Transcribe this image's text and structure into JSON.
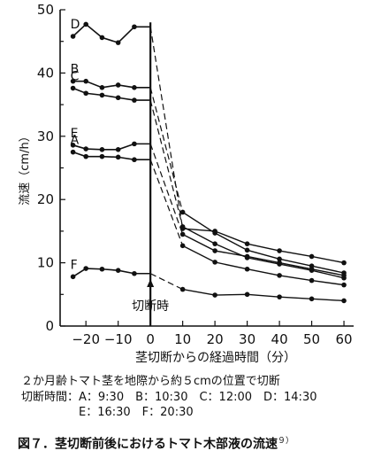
{
  "chart_data": {
    "type": "line",
    "ylabel": "流速（cm/h）",
    "xlabel": "茎切断からの経過時間（分）",
    "xlim": [
      -28,
      63
    ],
    "ylim": [
      0,
      50
    ],
    "xticks": [
      -20,
      -10,
      0,
      10,
      20,
      30,
      40,
      50,
      60
    ],
    "xtick_labels": [
      "−20",
      "−10",
      "0",
      "10",
      "20",
      "30",
      "40",
      "50",
      "60"
    ],
    "yticks": [
      0,
      10,
      20,
      30,
      40,
      50
    ],
    "cut_line_x": 0,
    "cut_annotation": "切断時",
    "series": [
      {
        "name": "D",
        "before": [
          [
            -24,
            45.8
          ],
          [
            -20,
            47.7
          ],
          [
            -15,
            45.6
          ],
          [
            -10,
            44.8
          ],
          [
            -5,
            47.3
          ],
          [
            0,
            47.3
          ]
        ],
        "after": [
          [
            10,
            15.4
          ],
          [
            20,
            15
          ],
          [
            30,
            13
          ],
          [
            40,
            11.9
          ],
          [
            50,
            11
          ],
          [
            60,
            10
          ]
        ]
      },
      {
        "name": "B",
        "before": [
          [
            -24,
            38.7
          ],
          [
            -20,
            38.7
          ],
          [
            -15,
            37.7
          ],
          [
            -10,
            38.1
          ],
          [
            -5,
            37.7
          ],
          [
            0,
            37.7
          ]
        ],
        "after": [
          [
            10,
            18
          ],
          [
            20,
            14.7
          ],
          [
            30,
            12
          ],
          [
            40,
            10.6
          ],
          [
            50,
            9.5
          ],
          [
            60,
            8.4
          ]
        ]
      },
      {
        "name": "C",
        "before": [
          [
            -24,
            37.6
          ],
          [
            -20,
            36.8
          ],
          [
            -15,
            36.5
          ],
          [
            -10,
            36.1
          ],
          [
            -5,
            35.7
          ],
          [
            0,
            35.7
          ]
        ],
        "after": [
          [
            10,
            15.7
          ],
          [
            20,
            13
          ],
          [
            30,
            10.8
          ],
          [
            40,
            9.8
          ],
          [
            50,
            8.8
          ],
          [
            60,
            7.6
          ]
        ]
      },
      {
        "name": "E",
        "before": [
          [
            -24,
            28.6
          ],
          [
            -20,
            28
          ],
          [
            -15,
            27.9
          ],
          [
            -10,
            27.9
          ],
          [
            -5,
            28.8
          ],
          [
            0,
            28.8
          ]
        ],
        "after": [
          [
            10,
            14.5
          ],
          [
            20,
            11.9
          ],
          [
            30,
            11
          ],
          [
            40,
            10
          ],
          [
            50,
            9
          ],
          [
            60,
            8
          ]
        ]
      },
      {
        "name": "A",
        "before": [
          [
            -24,
            27.5
          ],
          [
            -20,
            26.8
          ],
          [
            -15,
            26.8
          ],
          [
            -10,
            26.7
          ],
          [
            -5,
            26.3
          ],
          [
            0,
            26.3
          ]
        ],
        "after": [
          [
            10,
            12.7
          ],
          [
            20,
            10.1
          ],
          [
            30,
            9
          ],
          [
            40,
            8
          ],
          [
            50,
            7.2
          ],
          [
            60,
            6.5
          ]
        ]
      },
      {
        "name": "F",
        "before": [
          [
            -24,
            7.8
          ],
          [
            -20,
            9.1
          ],
          [
            -15,
            9
          ],
          [
            -10,
            8.8
          ],
          [
            -5,
            8.3
          ],
          [
            0,
            8.3
          ]
        ],
        "after": [
          [
            10,
            5.8
          ],
          [
            20,
            4.9
          ],
          [
            30,
            5
          ],
          [
            40,
            4.6
          ],
          [
            50,
            4.3
          ],
          [
            60,
            4
          ]
        ]
      }
    ]
  },
  "notes": {
    "line1": "２か月齢トマト茎を地際から約５cmの位置で切断",
    "line2": "切断時間：A：9:30　B：10:30　C：12:00　D：14:30",
    "line3": "　　　　　E：16:30　F：20:30"
  },
  "caption": {
    "text": "図７．茎切断前後におけるトマト木部液の流速",
    "ref": "９）"
  }
}
